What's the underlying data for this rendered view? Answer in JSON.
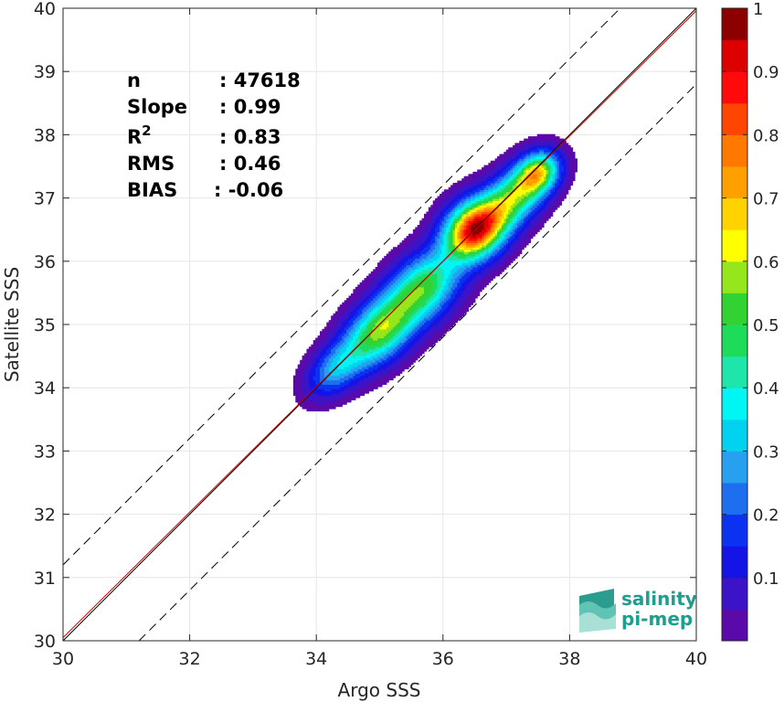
{
  "chart_data": {
    "type": "heatmap",
    "title": "",
    "xlabel": "Argo SSS",
    "ylabel": "Satellite SSS",
    "xlim": [
      30,
      40
    ],
    "ylim": [
      30,
      40
    ],
    "xticks": [
      "30",
      "32",
      "34",
      "36",
      "38",
      "40"
    ],
    "yticks": [
      "30",
      "31",
      "32",
      "33",
      "34",
      "35",
      "36",
      "37",
      "38",
      "39",
      "40"
    ],
    "grid": true,
    "stats": [
      {
        "label": "n",
        "value": ": 47618"
      },
      {
        "label": "Slope",
        "value": ": 0.99"
      },
      {
        "label": "R",
        "sup": "2",
        "value": ": 0.83"
      },
      {
        "label": "RMS",
        "value": ": 0.46"
      },
      {
        "label": "BIAS",
        "value": ": -0.06"
      }
    ],
    "lines": [
      {
        "kind": "identity",
        "color": "#000000",
        "style": "solid",
        "points": [
          [
            30,
            30
          ],
          [
            40,
            40
          ]
        ]
      },
      {
        "kind": "regression",
        "color": "#cc0000",
        "style": "solid",
        "points": [
          [
            30,
            30.05
          ],
          [
            40,
            39.96
          ]
        ]
      },
      {
        "kind": "upper-bound",
        "color": "#000000",
        "style": "dashed",
        "points": [
          [
            30,
            31.2
          ],
          [
            38.8,
            40
          ]
        ]
      },
      {
        "kind": "lower-bound",
        "color": "#000000",
        "style": "dashed",
        "points": [
          [
            31.2,
            30
          ],
          [
            40,
            38.8
          ]
        ]
      }
    ],
    "density_peak": {
      "x": 36.5,
      "y": 36.5
    },
    "colorbar": {
      "range": [
        0,
        1
      ],
      "ticks": [
        "0.1",
        "0.2",
        "0.3",
        "0.4",
        "0.5",
        "0.6",
        "0.7",
        "0.8",
        "0.9",
        "1"
      ],
      "levels": [
        {
          "level": 0.05,
          "color": "#5a0aa8"
        },
        {
          "level": 0.1,
          "color": "#3c14c8"
        },
        {
          "level": 0.15,
          "color": "#1414e6"
        },
        {
          "level": 0.2,
          "color": "#0a32f0"
        },
        {
          "level": 0.25,
          "color": "#1e6ef0"
        },
        {
          "level": 0.3,
          "color": "#28a0f0"
        },
        {
          "level": 0.35,
          "color": "#00d2f0"
        },
        {
          "level": 0.4,
          "color": "#00f5f5"
        },
        {
          "level": 0.45,
          "color": "#1ee6aa"
        },
        {
          "level": 0.5,
          "color": "#1edc5a"
        },
        {
          "level": 0.55,
          "color": "#32d232"
        },
        {
          "level": 0.6,
          "color": "#96e61e"
        },
        {
          "level": 0.65,
          "color": "#ffff00"
        },
        {
          "level": 0.7,
          "color": "#ffd200"
        },
        {
          "level": 0.75,
          "color": "#ffa000"
        },
        {
          "level": 0.8,
          "color": "#ff7800"
        },
        {
          "level": 0.85,
          "color": "#ff4600"
        },
        {
          "level": 0.9,
          "color": "#ff0a0a"
        },
        {
          "level": 0.95,
          "color": "#dc0000"
        },
        {
          "level": 1.0,
          "color": "#8c0000"
        }
      ]
    }
  },
  "logo": {
    "line1": "salinity",
    "line2": "pi-mep"
  }
}
